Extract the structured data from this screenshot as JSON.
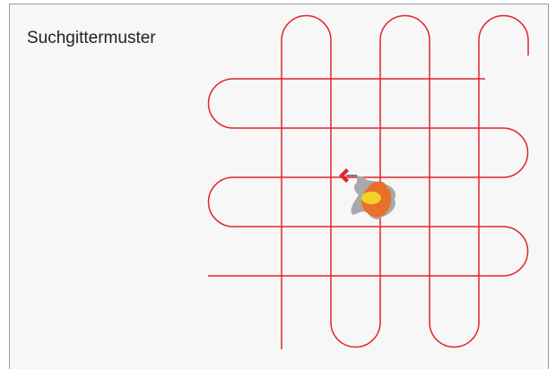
{
  "header": {
    "title": "Suchgittermuster"
  }
}
